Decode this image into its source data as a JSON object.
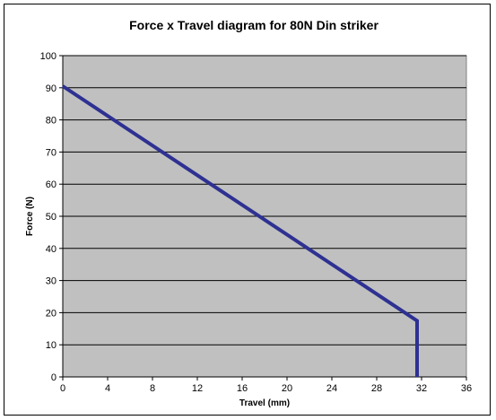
{
  "chart_data": {
    "type": "line",
    "title": "Force x Travel diagram for 80N Din striker",
    "xlabel": "Travel (mm)",
    "ylabel": "Force (N)",
    "xlim": [
      0,
      36
    ],
    "ylim": [
      0,
      100
    ],
    "xticks": [
      0,
      4,
      8,
      12,
      16,
      20,
      24,
      28,
      32,
      36
    ],
    "yticks": [
      0,
      10,
      20,
      30,
      40,
      50,
      60,
      70,
      80,
      90,
      100
    ],
    "grid": "horizontal",
    "series": [
      {
        "x": [
          0,
          31.6,
          31.6
        ],
        "y": [
          90.5,
          17.5,
          0
        ],
        "color": "#2e3192"
      }
    ],
    "colors": {
      "plot_background": "#c0c0c0",
      "gridline": "#000000"
    }
  }
}
